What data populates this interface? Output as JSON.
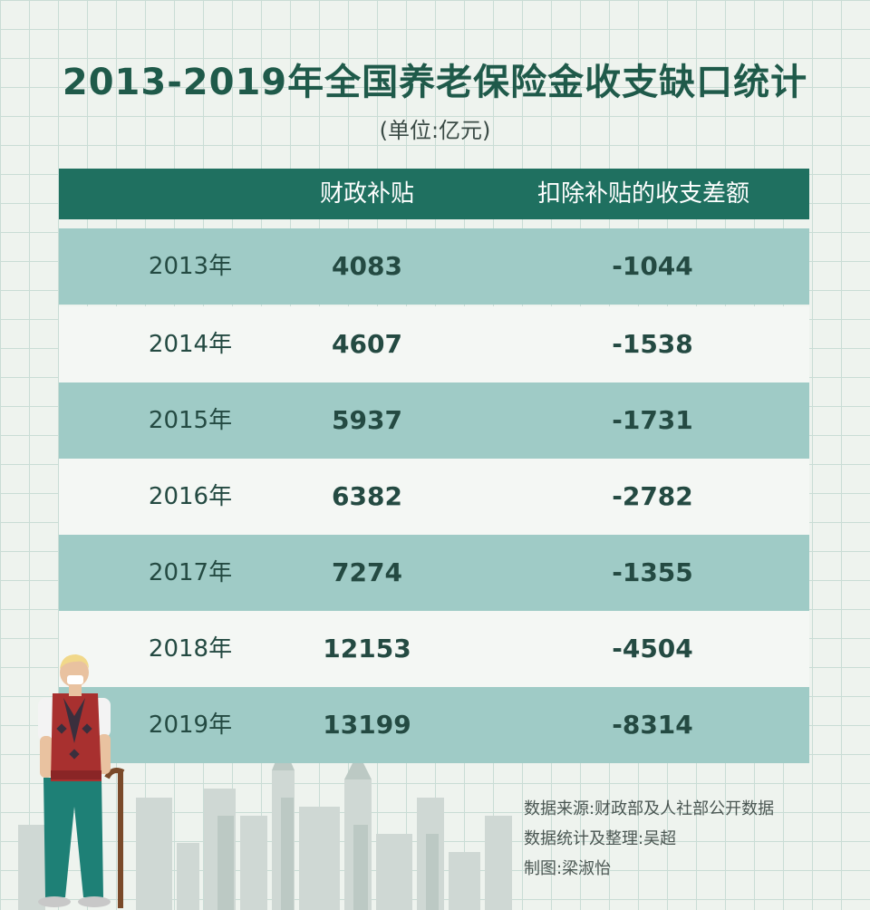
{
  "title": "2013-2019年全国养老保险金收支缺口统计",
  "unit": "(单位:亿元)",
  "table": {
    "headers": [
      "",
      "财政补贴",
      "扣除补贴的收支差额"
    ],
    "rows": [
      {
        "year": "2013年",
        "subsidy": "4083",
        "diff": "-1044"
      },
      {
        "year": "2014年",
        "subsidy": "4607",
        "diff": "-1538"
      },
      {
        "year": "2015年",
        "subsidy": "5937",
        "diff": "-1731"
      },
      {
        "year": "2016年",
        "subsidy": "6382",
        "diff": "-2782"
      },
      {
        "year": "2017年",
        "subsidy": "7274",
        "diff": "-1355"
      },
      {
        "year": "2018年",
        "subsidy": "12153",
        "diff": "-4504"
      },
      {
        "year": "2019年",
        "subsidy": "13199",
        "diff": "-8314"
      }
    ]
  },
  "notes": {
    "source": "数据来源:财政部及人社部公开数据",
    "compiled": "数据统计及整理:吴超",
    "design": "制图:梁淑怡"
  },
  "colors": {
    "title": "#1f5a4a",
    "header_bg": "#1f7060",
    "row_teal": "#9fcbc6",
    "row_light": "#f4f7f4"
  }
}
